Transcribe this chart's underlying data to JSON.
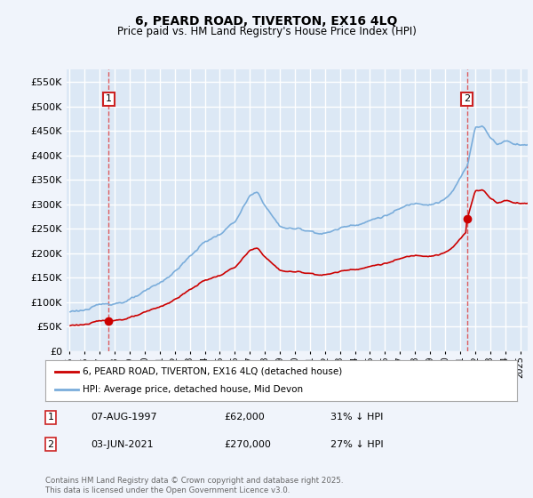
{
  "title": "6, PEARD ROAD, TIVERTON, EX16 4LQ",
  "subtitle": "Price paid vs. HM Land Registry's House Price Index (HPI)",
  "background_color": "#f0f4fb",
  "plot_bg_color": "#dce8f5",
  "grid_color": "#ffffff",
  "legend_label_red": "6, PEARD ROAD, TIVERTON, EX16 4LQ (detached house)",
  "legend_label_blue": "HPI: Average price, detached house, Mid Devon",
  "footnote": "Contains HM Land Registry data © Crown copyright and database right 2025.\nThis data is licensed under the Open Government Licence v3.0.",
  "transaction1_label": "1",
  "transaction1_date": "07-AUG-1997",
  "transaction1_price": "£62,000",
  "transaction1_note": "31% ↓ HPI",
  "transaction2_label": "2",
  "transaction2_date": "03-JUN-2021",
  "transaction2_price": "£270,000",
  "transaction2_note": "27% ↓ HPI",
  "ylim": [
    0,
    575000
  ],
  "yticks": [
    0,
    50000,
    100000,
    150000,
    200000,
    250000,
    300000,
    350000,
    400000,
    450000,
    500000,
    550000
  ],
  "red_color": "#cc0000",
  "blue_color": "#7aaddb",
  "dashed_color": "#dd4444",
  "sale1_year": 1997.6,
  "sale1_value": 62000,
  "sale2_year": 2021.45,
  "sale2_value": 270000,
  "xmin": 1994.8,
  "xmax": 2025.5
}
